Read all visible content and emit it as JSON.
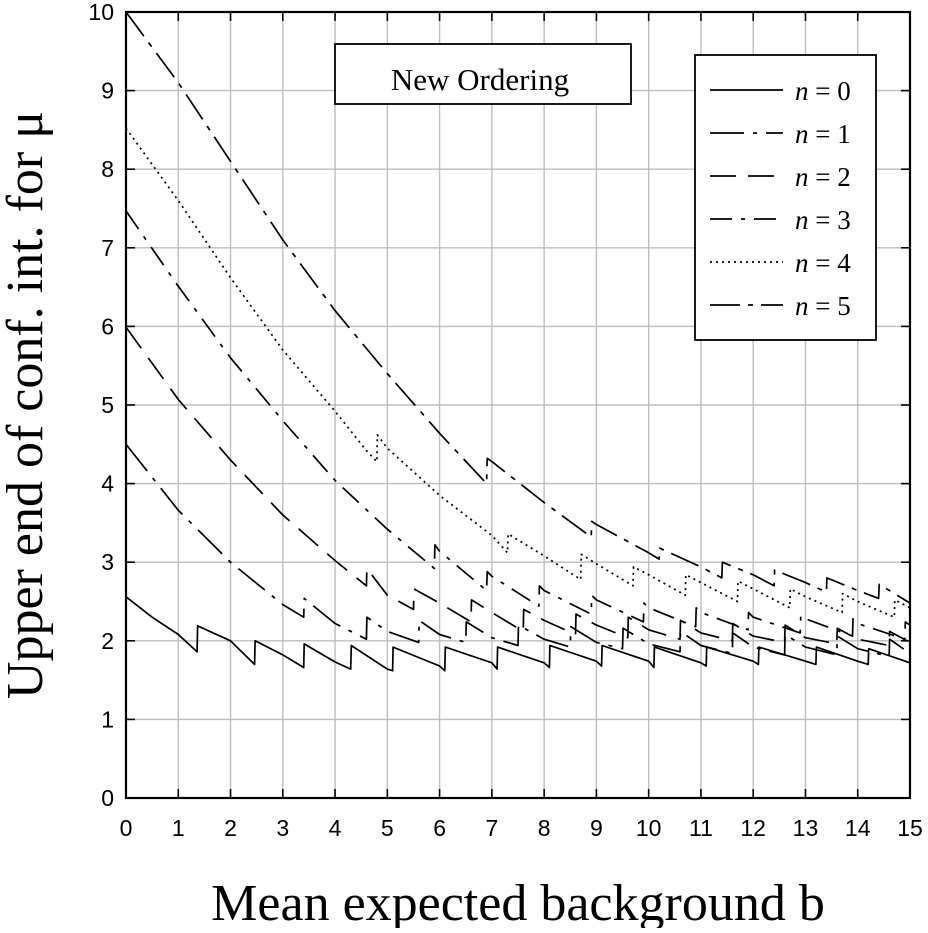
{
  "chart_data": {
    "type": "line",
    "title": "",
    "annotation": "New Ordering",
    "xlabel": "Mean expected background b",
    "ylabel": "Upper end of conf. int. for μ",
    "xlim": [
      0,
      15
    ],
    "ylim": [
      0,
      10
    ],
    "x_ticks": [
      "0",
      "1",
      "2",
      "3",
      "4",
      "5",
      "6",
      "7",
      "8",
      "9",
      "10",
      "11",
      "12",
      "13",
      "14",
      "15"
    ],
    "y_ticks": [
      "0",
      "1",
      "2",
      "3",
      "4",
      "5",
      "6",
      "7",
      "8",
      "9",
      "10"
    ],
    "grid": true,
    "legend_position": "top-right",
    "series": [
      {
        "name": "n = 0",
        "n": 0,
        "dash": "solid",
        "points": [
          [
            0,
            2.56
          ],
          [
            0.5,
            2.3
          ],
          [
            1,
            2.08
          ],
          [
            1.36,
            1.86
          ],
          [
            1.37,
            2.19
          ],
          [
            2,
            2.0
          ],
          [
            2.46,
            1.7
          ],
          [
            2.47,
            2.0
          ],
          [
            3,
            1.82
          ],
          [
            3.4,
            1.66
          ],
          [
            3.41,
            1.96
          ],
          [
            4,
            1.73
          ],
          [
            4.3,
            1.64
          ],
          [
            4.31,
            1.94
          ],
          [
            5,
            1.64
          ],
          [
            5.1,
            1.62
          ],
          [
            5.11,
            1.92
          ],
          [
            6,
            1.68
          ],
          [
            6.1,
            1.62
          ],
          [
            6.11,
            1.92
          ],
          [
            7,
            1.72
          ],
          [
            7.1,
            1.64
          ],
          [
            7.11,
            1.92
          ],
          [
            8,
            1.72
          ],
          [
            8.1,
            1.66
          ],
          [
            8.11,
            1.94
          ],
          [
            9,
            1.74
          ],
          [
            9.1,
            1.68
          ],
          [
            9.11,
            1.94
          ],
          [
            10,
            1.74
          ],
          [
            10.1,
            1.66
          ],
          [
            10.11,
            1.92
          ],
          [
            11,
            1.72
          ],
          [
            11.1,
            1.68
          ],
          [
            11.11,
            1.92
          ],
          [
            12,
            1.74
          ],
          [
            12.1,
            1.7
          ],
          [
            12.11,
            1.92
          ],
          [
            13,
            1.74
          ],
          [
            13.2,
            1.7
          ],
          [
            13.21,
            1.92
          ],
          [
            14,
            1.74
          ],
          [
            14.2,
            1.7
          ],
          [
            14.21,
            1.9
          ],
          [
            15,
            1.72
          ]
        ]
      },
      {
        "name": "n = 1",
        "n": 1,
        "dash": "longdash-dot",
        "points": [
          [
            0,
            4.5
          ],
          [
            1,
            3.66
          ],
          [
            2,
            3.0
          ],
          [
            3,
            2.46
          ],
          [
            3.4,
            2.3
          ],
          [
            3.41,
            2.54
          ],
          [
            4,
            2.22
          ],
          [
            4.6,
            2.02
          ],
          [
            4.61,
            2.3
          ],
          [
            5,
            2.12
          ],
          [
            5.6,
            1.98
          ],
          [
            5.61,
            2.26
          ],
          [
            6,
            2.08
          ],
          [
            6.5,
            1.98
          ],
          [
            6.51,
            2.24
          ],
          [
            7,
            2.04
          ],
          [
            7.5,
            1.94
          ],
          [
            7.51,
            2.2
          ],
          [
            8,
            2.02
          ],
          [
            8.5,
            1.92
          ],
          [
            8.51,
            2.18
          ],
          [
            9,
            1.98
          ],
          [
            9.5,
            1.9
          ],
          [
            9.51,
            2.16
          ],
          [
            10,
            1.96
          ],
          [
            10.6,
            1.86
          ],
          [
            10.61,
            2.12
          ],
          [
            11,
            1.94
          ],
          [
            11.6,
            1.84
          ],
          [
            11.61,
            2.1
          ],
          [
            12,
            1.92
          ],
          [
            12.6,
            1.82
          ],
          [
            12.61,
            2.08
          ],
          [
            13,
            1.92
          ],
          [
            13.6,
            1.82
          ],
          [
            13.61,
            2.06
          ],
          [
            14,
            1.9
          ],
          [
            14.6,
            1.8
          ],
          [
            14.61,
            2.02
          ],
          [
            15,
            1.84
          ]
        ]
      },
      {
        "name": "n = 2",
        "n": 2,
        "dash": "longdash",
        "points": [
          [
            0,
            5.99
          ],
          [
            1,
            5.07
          ],
          [
            2,
            4.3
          ],
          [
            3,
            3.6
          ],
          [
            4,
            3.02
          ],
          [
            4.6,
            2.7
          ],
          [
            4.61,
            2.92
          ],
          [
            5,
            2.58
          ],
          [
            5.5,
            2.4
          ],
          [
            5.51,
            2.66
          ],
          [
            6,
            2.48
          ],
          [
            6.6,
            2.24
          ],
          [
            6.61,
            2.52
          ],
          [
            7,
            2.36
          ],
          [
            7.6,
            2.12
          ],
          [
            7.61,
            2.4
          ],
          [
            8,
            2.26
          ],
          [
            8.6,
            2.08
          ],
          [
            8.61,
            2.34
          ],
          [
            9,
            2.2
          ],
          [
            9.6,
            2.04
          ],
          [
            9.61,
            2.3
          ],
          [
            10,
            2.14
          ],
          [
            10.6,
            2.02
          ],
          [
            10.61,
            2.26
          ],
          [
            11,
            2.1
          ],
          [
            11.6,
            2.0
          ],
          [
            11.61,
            2.22
          ],
          [
            12,
            2.06
          ],
          [
            12.6,
            1.98
          ],
          [
            12.61,
            2.2
          ],
          [
            13,
            2.04
          ],
          [
            13.6,
            1.96
          ],
          [
            13.61,
            2.16
          ],
          [
            14,
            2.02
          ],
          [
            14.6,
            1.94
          ],
          [
            14.61,
            2.12
          ],
          [
            15,
            1.98
          ]
        ]
      },
      {
        "name": "n = 3",
        "n": 3,
        "dash": "dashdot",
        "points": [
          [
            0,
            7.47
          ],
          [
            1,
            6.51
          ],
          [
            2,
            5.6
          ],
          [
            3,
            4.8
          ],
          [
            4,
            4.04
          ],
          [
            5,
            3.42
          ],
          [
            5.9,
            2.92
          ],
          [
            5.91,
            3.22
          ],
          [
            6,
            3.14
          ],
          [
            6.9,
            2.64
          ],
          [
            6.91,
            2.88
          ],
          [
            7,
            2.82
          ],
          [
            7.9,
            2.44
          ],
          [
            7.91,
            2.7
          ],
          [
            8,
            2.64
          ],
          [
            8.9,
            2.34
          ],
          [
            8.91,
            2.58
          ],
          [
            9,
            2.52
          ],
          [
            9.9,
            2.24
          ],
          [
            9.91,
            2.48
          ],
          [
            10,
            2.42
          ],
          [
            10.9,
            2.18
          ],
          [
            10.91,
            2.42
          ],
          [
            11,
            2.36
          ],
          [
            11.9,
            2.14
          ],
          [
            11.91,
            2.36
          ],
          [
            12,
            2.3
          ],
          [
            12.9,
            2.1
          ],
          [
            12.91,
            2.32
          ],
          [
            13,
            2.28
          ],
          [
            13.9,
            2.06
          ],
          [
            13.91,
            2.28
          ],
          [
            14,
            2.22
          ],
          [
            14.9,
            2.02
          ],
          [
            14.91,
            2.24
          ],
          [
            15,
            2.2
          ]
        ]
      },
      {
        "name": "n = 4",
        "n": 4,
        "dash": "dotted",
        "points": [
          [
            0,
            8.52
          ],
          [
            1,
            7.6
          ],
          [
            2,
            6.62
          ],
          [
            3,
            5.7
          ],
          [
            4,
            4.92
          ],
          [
            4.6,
            4.42
          ],
          [
            4.8,
            4.28
          ],
          [
            4.81,
            4.62
          ],
          [
            5,
            4.45
          ],
          [
            6,
            3.85
          ],
          [
            7,
            3.34
          ],
          [
            7.3,
            3.12
          ],
          [
            7.31,
            3.36
          ],
          [
            8,
            3.08
          ],
          [
            8.7,
            2.78
          ],
          [
            8.71,
            3.1
          ],
          [
            9,
            2.98
          ],
          [
            9.7,
            2.7
          ],
          [
            9.71,
            2.94
          ],
          [
            10,
            2.84
          ],
          [
            10.7,
            2.58
          ],
          [
            10.71,
            2.84
          ],
          [
            11,
            2.74
          ],
          [
            11.7,
            2.5
          ],
          [
            11.71,
            2.76
          ],
          [
            12,
            2.66
          ],
          [
            12.7,
            2.42
          ],
          [
            12.71,
            2.66
          ],
          [
            13,
            2.56
          ],
          [
            13.7,
            2.36
          ],
          [
            13.71,
            2.6
          ],
          [
            14,
            2.5
          ],
          [
            14.7,
            2.3
          ],
          [
            14.71,
            2.52
          ],
          [
            15,
            2.42
          ]
        ]
      },
      {
        "name": "n = 5",
        "n": 5,
        "dash": "longdashdot",
        "points": [
          [
            0,
            10.0
          ],
          [
            1,
            9.1
          ],
          [
            2,
            8.1
          ],
          [
            3,
            7.1
          ],
          [
            4,
            6.2
          ],
          [
            5,
            5.4
          ],
          [
            6,
            4.64
          ],
          [
            6.9,
            4.0
          ],
          [
            6.91,
            4.32
          ],
          [
            7,
            4.28
          ],
          [
            8,
            3.76
          ],
          [
            8.9,
            3.32
          ],
          [
            8.91,
            3.52
          ],
          [
            9,
            3.48
          ],
          [
            10,
            3.12
          ],
          [
            10.2,
            3.04
          ],
          [
            10.21,
            3.18
          ],
          [
            11,
            2.94
          ],
          [
            11.4,
            2.8
          ],
          [
            11.41,
            3.0
          ],
          [
            12,
            2.84
          ],
          [
            12.4,
            2.7
          ],
          [
            12.41,
            2.9
          ],
          [
            13,
            2.74
          ],
          [
            13.4,
            2.62
          ],
          [
            13.41,
            2.8
          ],
          [
            14,
            2.64
          ],
          [
            14.4,
            2.54
          ],
          [
            14.41,
            2.72
          ],
          [
            15,
            2.48
          ]
        ]
      }
    ]
  }
}
